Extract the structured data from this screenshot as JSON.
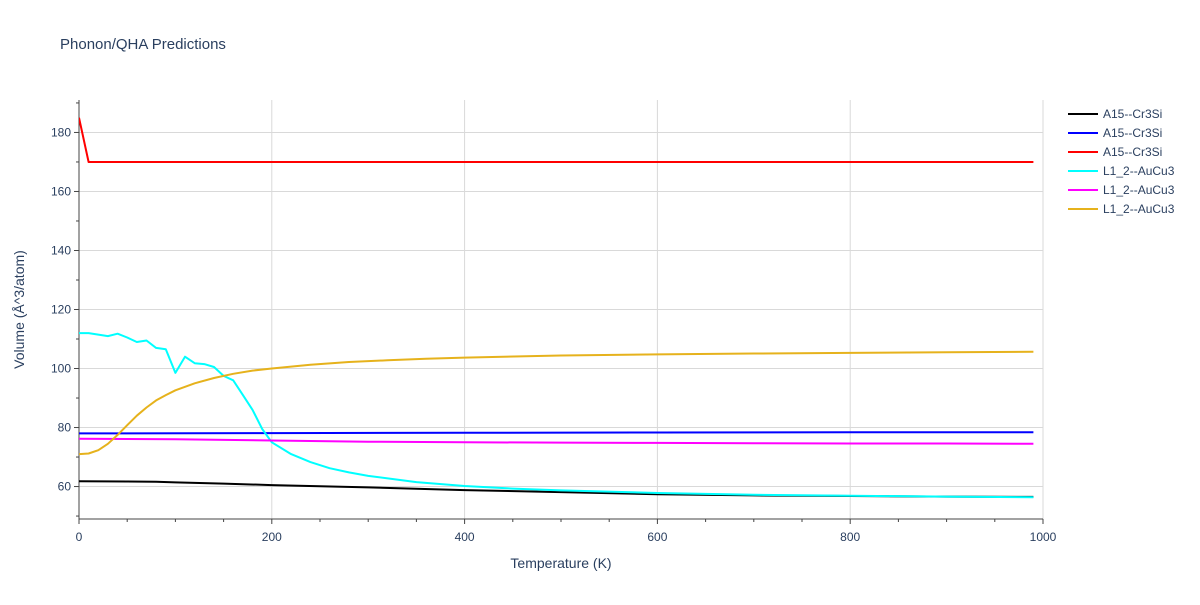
{
  "chart_data": {
    "type": "line",
    "title": "Phonon/QHA Predictions",
    "xlabel": "Temperature (K)",
    "ylabel": "Volume (Å^3/atom)",
    "xlim": [
      0,
      1000
    ],
    "ylim": [
      49,
      191
    ],
    "x_ticks": [
      0,
      200,
      400,
      600,
      800,
      1000
    ],
    "y_ticks": [
      60,
      80,
      100,
      120,
      140,
      160,
      180
    ],
    "grid": true,
    "legend_position": "top-right",
    "series": [
      {
        "name": "A15--Cr3Si",
        "color": "#000000",
        "x": [
          0,
          50,
          80,
          100,
          150,
          200,
          300,
          400,
          500,
          600,
          700,
          800,
          900,
          990
        ],
        "y": [
          61.8,
          61.7,
          61.6,
          61.4,
          61.0,
          60.5,
          59.7,
          58.8,
          58.1,
          57.4,
          57.0,
          56.8,
          56.6,
          56.5
        ]
      },
      {
        "name": "A15--Cr3Si",
        "color": "#0000ff",
        "x": [
          0,
          200,
          400,
          600,
          800,
          990
        ],
        "y": [
          78.0,
          78.1,
          78.2,
          78.3,
          78.4,
          78.4
        ]
      },
      {
        "name": "A15--Cr3Si",
        "color": "#ff0000",
        "x": [
          0,
          10,
          20,
          100,
          500,
          990
        ],
        "y": [
          185,
          170,
          170,
          170,
          170,
          170
        ]
      },
      {
        "name": "L1_2--AuCu3",
        "color": "#00ffff",
        "x": [
          0,
          10,
          20,
          30,
          40,
          50,
          60,
          70,
          80,
          90,
          100,
          110,
          120,
          130,
          140,
          150,
          160,
          170,
          180,
          190,
          200,
          220,
          240,
          260,
          280,
          300,
          350,
          400,
          450,
          500,
          600,
          700,
          800,
          900,
          990
        ],
        "y": [
          112,
          112,
          111.5,
          111,
          111.8,
          110.5,
          109,
          109.5,
          107,
          106.5,
          98.5,
          104,
          101.8,
          101.5,
          100.5,
          97.5,
          96,
          91,
          86,
          79.5,
          75,
          71,
          68.3,
          66.2,
          64.8,
          63.6,
          61.5,
          60.2,
          59.3,
          58.7,
          57.8,
          57.2,
          56.9,
          56.6,
          56.4
        ]
      },
      {
        "name": "L1_2--AuCu3",
        "color": "#ff00ff",
        "x": [
          0,
          100,
          200,
          300,
          400,
          500,
          600,
          700,
          800,
          900,
          990
        ],
        "y": [
          76.2,
          76.0,
          75.6,
          75.2,
          75.0,
          74.9,
          74.8,
          74.7,
          74.6,
          74.6,
          74.5
        ]
      },
      {
        "name": "L1_2--AuCu3",
        "color": "#e6b21c",
        "x": [
          0,
          10,
          20,
          30,
          40,
          50,
          60,
          70,
          80,
          90,
          100,
          120,
          140,
          160,
          180,
          200,
          240,
          280,
          320,
          360,
          400,
          500,
          600,
          700,
          800,
          900,
          990
        ],
        "y": [
          71,
          71.2,
          72.3,
          74.5,
          77.5,
          80.8,
          84,
          86.8,
          89.2,
          91,
          92.6,
          95,
          96.8,
          98.2,
          99.3,
          100,
          101.3,
          102.2,
          102.8,
          103.3,
          103.7,
          104.4,
          104.8,
          105.1,
          105.3,
          105.5,
          105.7
        ]
      }
    ]
  }
}
